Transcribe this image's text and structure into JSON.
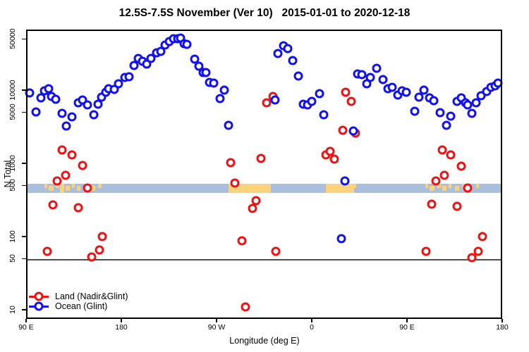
{
  "title": "12.5S-7.5S November (Ver 10)   2015-01-01 to 2020-12-18",
  "legend": [
    {
      "label": "Land (Nadir&Glint)",
      "color": "#ee1111"
    },
    {
      "label": "Ocean (Glint)",
      "color": "#1111ee"
    }
  ],
  "colors": {
    "land_marker": "#ee1111",
    "ocean_marker": "#1111ee",
    "band_ocean": "#a9bfdd",
    "band_land": "#fcd27c",
    "threshold_line": "#4d4d4d",
    "axis": "#000000"
  },
  "chart_data": {
    "type": "scatter",
    "title": "12.5S-7.5S November (Ver 10)   2015-01-01 to 2020-12-18",
    "xlabel": "Longitude (deg E)",
    "ylabel": "N Total",
    "x_axis": {
      "label": "Longitude (deg E)",
      "range_deg": [
        90,
        540
      ],
      "ticks": [
        {
          "deg": 90,
          "label": "90 E"
        },
        {
          "deg": 180,
          "label": "180"
        },
        {
          "deg": 270,
          "label": "90 W"
        },
        {
          "deg": 360,
          "label": "0"
        },
        {
          "deg": 450,
          "label": "90 E"
        },
        {
          "deg": 540,
          "label": "180"
        }
      ]
    },
    "y_axis": {
      "label": "N Total",
      "scale": "log10",
      "range": [
        9,
        67000
      ],
      "ticks": [
        10,
        50,
        100,
        500,
        1000,
        5000,
        10000,
        50000
      ]
    },
    "threshold_line_n": 48,
    "map_band": {
      "n_range": [
        395,
        525
      ],
      "description": "land/ocean map strip along latitude band",
      "land_segments": [
        {
          "lon": [
            107,
            110
          ],
          "v": "t"
        },
        {
          "lon": [
            111,
            116
          ],
          "v": "m"
        },
        {
          "lon": [
            118,
            121
          ],
          "v": "t"
        },
        {
          "lon": [
            122,
            126
          ],
          "v": "f"
        },
        {
          "lon": [
            127,
            131
          ],
          "v": "m"
        },
        {
          "lon": [
            133,
            136
          ],
          "v": "t"
        },
        {
          "lon": [
            138,
            141
          ],
          "v": "m"
        },
        {
          "lon": [
            145,
            149
          ],
          "v": "t"
        },
        {
          "lon": [
            151,
            155
          ],
          "v": "m"
        },
        {
          "lon": [
            158,
            161
          ],
          "v": "t"
        },
        {
          "lon": [
            281,
            321
          ],
          "v": "f"
        },
        {
          "lon": [
            373,
            400
          ],
          "v": "f"
        },
        {
          "lon": [
            400,
            402
          ],
          "v": "t"
        },
        {
          "lon": [
            467,
            470
          ],
          "v": "t"
        },
        {
          "lon": [
            471,
            476
          ],
          "v": "m"
        },
        {
          "lon": [
            478,
            482
          ],
          "v": "t"
        },
        {
          "lon": [
            483,
            487
          ],
          "v": "m"
        },
        {
          "lon": [
            489,
            492
          ],
          "v": "t"
        },
        {
          "lon": [
            495,
            499
          ],
          "v": "m"
        },
        {
          "lon": [
            502,
            506
          ],
          "v": "t"
        },
        {
          "lon": [
            508,
            512
          ],
          "v": "m"
        },
        {
          "lon": [
            515,
            518
          ],
          "v": "t"
        }
      ]
    },
    "series": [
      {
        "name": "Land (Nadir&Glint)",
        "color": "#ee1111",
        "points": [
          [
            110,
            63
          ],
          [
            115,
            270
          ],
          [
            119,
            575
          ],
          [
            124,
            1520
          ],
          [
            127,
            690
          ],
          [
            133,
            1300
          ],
          [
            139,
            250
          ],
          [
            143,
            940
          ],
          [
            148,
            460
          ],
          [
            152,
            53
          ],
          [
            159,
            66
          ],
          [
            162,
            100
          ],
          [
            283,
            1020
          ],
          [
            287,
            540
          ],
          [
            294,
            87
          ],
          [
            297,
            11
          ],
          [
            304,
            245
          ],
          [
            307,
            310
          ],
          [
            312,
            1170
          ],
          [
            317,
            6750
          ],
          [
            323,
            8200
          ],
          [
            326,
            63
          ],
          [
            373,
            1300
          ],
          [
            377,
            1450
          ],
          [
            381,
            1150
          ],
          [
            389,
            2830
          ],
          [
            392,
            9350
          ],
          [
            397,
            7000
          ],
          [
            401,
            2600
          ],
          [
            468,
            63
          ],
          [
            473,
            275
          ],
          [
            477,
            575
          ],
          [
            483,
            1520
          ],
          [
            485,
            690
          ],
          [
            491,
            1300
          ],
          [
            497,
            260
          ],
          [
            501,
            920
          ],
          [
            507,
            460
          ],
          [
            511,
            51
          ],
          [
            517,
            63
          ],
          [
            521,
            100
          ]
        ]
      },
      {
        "name": "Ocean (Glint)",
        "color": "#1111ee",
        "points": [
          [
            93,
            9150
          ],
          [
            99,
            5050
          ],
          [
            104,
            7850
          ],
          [
            107,
            9800
          ],
          [
            111,
            10450
          ],
          [
            114,
            8200
          ],
          [
            118,
            7500
          ],
          [
            124,
            4820
          ],
          [
            128,
            3250
          ],
          [
            133,
            4300
          ],
          [
            139,
            6750
          ],
          [
            143,
            7350
          ],
          [
            148,
            6300
          ],
          [
            154,
            4600
          ],
          [
            158,
            6450
          ],
          [
            161,
            8000
          ],
          [
            165,
            9350
          ],
          [
            168,
            10450
          ],
          [
            173,
            10200
          ],
          [
            177,
            12200
          ],
          [
            183,
            14900
          ],
          [
            187,
            15200
          ],
          [
            192,
            21700
          ],
          [
            196,
            27000
          ],
          [
            200,
            24800
          ],
          [
            204,
            22700
          ],
          [
            208,
            27000
          ],
          [
            213,
            32300
          ],
          [
            217,
            33800
          ],
          [
            221,
            41400
          ],
          [
            225,
            46000
          ],
          [
            229,
            50500
          ],
          [
            233,
            50500
          ],
          [
            236,
            51600
          ],
          [
            239,
            43300
          ],
          [
            242,
            42000
          ],
          [
            249,
            26500
          ],
          [
            253,
            21400
          ],
          [
            257,
            17400
          ],
          [
            260,
            17400
          ],
          [
            263,
            12800
          ],
          [
            267,
            12500
          ],
          [
            273,
            7700
          ],
          [
            277,
            10000
          ],
          [
            281,
            3300
          ],
          [
            325,
            7350
          ],
          [
            328,
            31600
          ],
          [
            333,
            40400
          ],
          [
            337,
            36900
          ],
          [
            342,
            25300
          ],
          [
            347,
            15500
          ],
          [
            352,
            6450
          ],
          [
            356,
            6300
          ],
          [
            360,
            7000
          ],
          [
            367,
            8950
          ],
          [
            371,
            4600
          ],
          [
            388,
            93
          ],
          [
            391,
            575
          ],
          [
            399,
            2770
          ],
          [
            403,
            16700
          ],
          [
            407,
            16300
          ],
          [
            412,
            12200
          ],
          [
            415,
            14900
          ],
          [
            421,
            19900
          ],
          [
            427,
            13900
          ],
          [
            432,
            10450
          ],
          [
            436,
            10900
          ],
          [
            441,
            8550
          ],
          [
            445,
            9800
          ],
          [
            449,
            9350
          ],
          [
            457,
            5150
          ],
          [
            461,
            8000
          ],
          [
            466,
            10000
          ],
          [
            471,
            7800
          ],
          [
            475,
            7200
          ],
          [
            481,
            4920
          ],
          [
            487,
            3300
          ],
          [
            491,
            4400
          ],
          [
            497,
            7000
          ],
          [
            501,
            7800
          ],
          [
            505,
            6700
          ],
          [
            507,
            6300
          ],
          [
            511,
            4820
          ],
          [
            515,
            6700
          ],
          [
            520,
            8400
          ],
          [
            525,
            9600
          ],
          [
            529,
            10900
          ],
          [
            533,
            11400
          ],
          [
            536,
            12500
          ]
        ]
      }
    ]
  }
}
